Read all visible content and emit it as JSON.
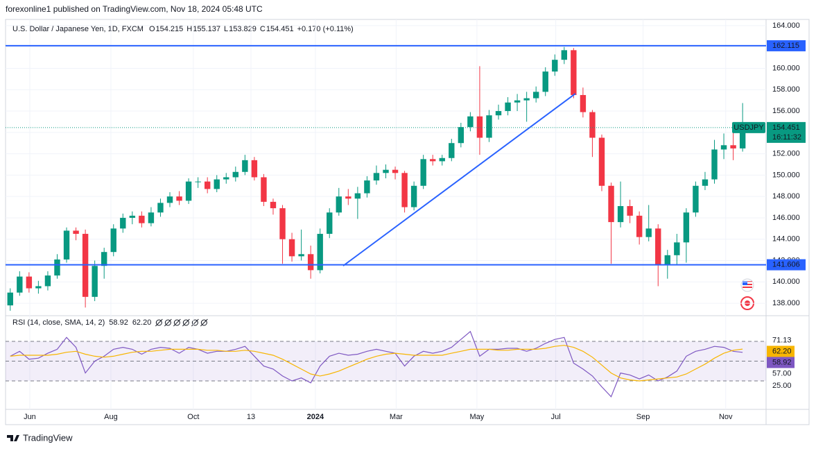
{
  "header": {
    "published": "forexonline1 published on TradingView.com, Nov 18, 2024 05:48 UTC",
    "symbol": "U.S. Dollar / Japanese Yen, 1D, FXCM",
    "ohlc": [
      {
        "label": "O",
        "value": "154.215"
      },
      {
        "label": "H",
        "value": "155.137"
      },
      {
        "label": "L",
        "value": "153.829"
      },
      {
        "label": "C",
        "value": "154.451"
      }
    ],
    "change": "+0.170 (+0.11%)"
  },
  "chart_data": [
    {
      "type": "candlestick",
      "symbol_tag": "USDJPY",
      "countdown": "16:11:32",
      "up_color": "#089981",
      "down_color": "#f23645",
      "candles": [
        [
          137.8,
          139.4,
          137.3,
          139.0
        ],
        [
          139.0,
          141.0,
          138.7,
          140.5
        ],
        [
          140.5,
          140.9,
          139.0,
          139.4
        ],
        [
          139.4,
          140.1,
          138.9,
          139.6
        ],
        [
          139.6,
          141.0,
          139.2,
          140.6
        ],
        [
          140.6,
          142.6,
          140.3,
          142.1
        ],
        [
          142.1,
          145.1,
          141.8,
          144.8
        ],
        [
          144.8,
          145.1,
          143.9,
          144.5
        ],
        [
          144.5,
          144.9,
          137.6,
          138.6
        ],
        [
          138.6,
          142.0,
          138.2,
          141.5
        ],
        [
          141.5,
          143.2,
          140.3,
          142.8
        ],
        [
          142.8,
          145.4,
          142.4,
          145.0
        ],
        [
          145.0,
          146.4,
          144.6,
          146.0
        ],
        [
          146.0,
          146.6,
          145.4,
          146.2
        ],
        [
          146.2,
          146.6,
          145.1,
          145.5
        ],
        [
          145.5,
          147.0,
          145.2,
          146.5
        ],
        [
          146.5,
          147.8,
          146.1,
          147.4
        ],
        [
          147.4,
          148.4,
          147.0,
          148.0
        ],
        [
          148.0,
          148.5,
          147.2,
          147.6
        ],
        [
          147.6,
          149.7,
          147.3,
          149.4
        ],
        [
          149.4,
          149.8,
          148.8,
          149.4
        ],
        [
          149.4,
          149.8,
          148.3,
          148.7
        ],
        [
          148.7,
          150.0,
          148.4,
          149.6
        ],
        [
          149.6,
          150.2,
          149.2,
          149.8
        ],
        [
          149.8,
          150.8,
          149.4,
          150.3
        ],
        [
          150.3,
          151.9,
          150.0,
          151.4
        ],
        [
          151.4,
          151.7,
          149.5,
          149.8
        ],
        [
          149.8,
          150.1,
          147.1,
          147.5
        ],
        [
          147.5,
          147.8,
          146.3,
          146.9
        ],
        [
          146.9,
          147.2,
          141.7,
          144.0
        ],
        [
          144.0,
          144.6,
          141.9,
          142.4
        ],
        [
          142.4,
          144.9,
          142.0,
          142.6
        ],
        [
          142.6,
          143.4,
          140.3,
          141.1
        ],
        [
          141.1,
          145.0,
          140.8,
          144.5
        ],
        [
          144.5,
          146.9,
          144.1,
          146.5
        ],
        [
          146.5,
          148.8,
          146.2,
          148.0
        ],
        [
          148.0,
          148.7,
          147.2,
          147.8
        ],
        [
          147.8,
          148.9,
          145.9,
          148.3
        ],
        [
          148.3,
          149.9,
          147.9,
          149.5
        ],
        [
          149.5,
          150.9,
          149.1,
          150.2
        ],
        [
          150.2,
          151.0,
          149.7,
          150.5
        ],
        [
          150.5,
          150.8,
          149.6,
          150.2
        ],
        [
          150.2,
          150.4,
          146.5,
          147.0
        ],
        [
          147.0,
          149.4,
          146.7,
          149.0
        ],
        [
          149.0,
          151.9,
          148.7,
          151.5
        ],
        [
          151.5,
          151.9,
          150.9,
          151.3
        ],
        [
          151.3,
          151.9,
          150.9,
          151.6
        ],
        [
          151.6,
          153.4,
          151.3,
          153.0
        ],
        [
          153.0,
          154.9,
          152.6,
          154.5
        ],
        [
          154.5,
          155.9,
          154.1,
          155.5
        ],
        [
          155.5,
          160.2,
          151.9,
          153.5
        ],
        [
          153.5,
          156.1,
          153.1,
          155.6
        ],
        [
          155.6,
          156.6,
          155.2,
          156.0
        ],
        [
          156.0,
          157.3,
          155.6,
          156.8
        ],
        [
          156.8,
          157.6,
          156.0,
          157.0
        ],
        [
          157.0,
          157.8,
          155.0,
          157.2
        ],
        [
          157.2,
          158.3,
          156.8,
          157.8
        ],
        [
          157.8,
          160.1,
          157.4,
          159.7
        ],
        [
          159.7,
          161.3,
          159.3,
          160.8
        ],
        [
          160.8,
          162.0,
          160.4,
          161.7
        ],
        [
          161.7,
          161.9,
          157.2,
          157.5
        ],
        [
          157.5,
          158.2,
          155.4,
          155.9
        ],
        [
          155.9,
          156.1,
          151.7,
          153.5
        ],
        [
          153.5,
          153.8,
          148.5,
          149.0
        ],
        [
          149.0,
          149.3,
          141.7,
          145.6
        ],
        [
          145.6,
          149.4,
          145.1,
          147.1
        ],
        [
          147.1,
          147.7,
          145.5,
          146.2
        ],
        [
          146.2,
          146.6,
          143.5,
          144.2
        ],
        [
          144.2,
          147.2,
          143.8,
          145.0
        ],
        [
          145.0,
          145.4,
          139.6,
          141.6
        ],
        [
          141.6,
          143.0,
          140.3,
          142.5
        ],
        [
          142.5,
          144.5,
          141.6,
          143.7
        ],
        [
          143.7,
          146.9,
          141.8,
          146.5
        ],
        [
          146.5,
          149.4,
          146.1,
          149.0
        ],
        [
          149.0,
          150.3,
          148.6,
          149.6
        ],
        [
          149.6,
          153.3,
          149.2,
          152.4
        ],
        [
          152.4,
          153.9,
          151.5,
          152.8
        ],
        [
          152.8,
          154.3,
          151.4,
          152.5
        ],
        [
          152.5,
          156.75,
          152.2,
          154.451
        ]
      ],
      "xlim": [
        -0.5,
        80.5
      ],
      "xticks": [
        {
          "value": 2.08,
          "label": "Jun"
        },
        {
          "value": 10.72,
          "label": "Aug"
        },
        {
          "value": 19.5,
          "label": "Oct"
        },
        {
          "value": 25.64,
          "label": "13"
        },
        {
          "value": 32.5,
          "label": "2024"
        },
        {
          "value": 41.1,
          "label": "Mar"
        },
        {
          "value": 49.7,
          "label": "May"
        },
        {
          "value": 58.1,
          "label": "Jul"
        },
        {
          "value": 67.4,
          "label": "Sep"
        },
        {
          "value": 76.2,
          "label": "Nov"
        }
      ],
      "ylim": [
        137.16,
        164.58
      ],
      "yticks": [
        {
          "value": 138,
          "label": "138.000"
        },
        {
          "value": 140,
          "label": "140.000"
        },
        {
          "value": 142,
          "label": "142.000"
        },
        {
          "value": 144,
          "label": "144.000"
        },
        {
          "value": 146,
          "label": "146.000"
        },
        {
          "value": 148,
          "label": "148.000"
        },
        {
          "value": 150,
          "label": "150.000"
        },
        {
          "value": 152,
          "label": "152.000"
        },
        {
          "value": 154,
          "label": "154.000"
        },
        {
          "value": 156,
          "label": "156.000"
        },
        {
          "value": 158,
          "label": "158.000"
        },
        {
          "value": 160,
          "label": "160.000"
        },
        {
          "value": 162,
          "label": "162.000"
        },
        {
          "value": 164,
          "label": "164.000"
        }
      ],
      "grid": true,
      "levels": [
        {
          "value": 162.115,
          "color": "#2962ff"
        },
        {
          "value": 141.606,
          "color": "#2962ff"
        }
      ],
      "trend_line": {
        "x": [
          35.46,
          60.19
        ],
        "y": [
          141.51,
          157.63
        ],
        "color": "#2962ff"
      }
    },
    {
      "type": "line",
      "title": "RSI (14, close, SMA, 14, 2)",
      "ylim": [
        1.2,
        93.9
      ],
      "yticks": [
        {
          "value": 25,
          "label": "25.00"
        },
        {
          "value": 57,
          "label": "57.00"
        },
        71.13
      ],
      "bands": [
        30,
        50,
        70
      ],
      "band_color": "#7e57c2",
      "series": [
        {
          "color": "#7e57c2",
          "values": [
            55,
            60,
            52,
            53,
            58,
            62,
            74,
            64,
            38,
            50,
            55,
            62,
            64,
            62,
            57,
            62,
            64,
            63,
            58,
            64,
            62,
            58,
            60,
            60,
            62,
            65,
            55,
            45,
            42,
            35,
            30,
            33,
            28,
            45,
            55,
            58,
            56,
            57,
            60,
            62,
            60,
            58,
            45,
            55,
            60,
            58,
            60,
            64,
            72,
            80,
            55,
            62,
            62,
            63,
            63,
            60,
            63,
            68,
            72,
            74,
            48,
            42,
            35,
            24,
            14,
            38,
            36,
            32,
            36,
            30,
            34,
            40,
            55,
            60,
            62,
            65,
            64,
            60,
            58.92
          ]
        },
        {
          "color": "#f7b500",
          "values": [
            55,
            56,
            56,
            56,
            56,
            57,
            59,
            60,
            57,
            55,
            54,
            55,
            57,
            59,
            60,
            60,
            61,
            62,
            62,
            62,
            62,
            61,
            61,
            60,
            60,
            61,
            60,
            58,
            56,
            52,
            47,
            42,
            37,
            35,
            37,
            40,
            44,
            48,
            52,
            55,
            57,
            58,
            57,
            56,
            56,
            56,
            56,
            58,
            60,
            62,
            62,
            62,
            61,
            61,
            62,
            62,
            62,
            63,
            65,
            66,
            64,
            60,
            54,
            46,
            38,
            33,
            31,
            30,
            31,
            32,
            33,
            34,
            37,
            42,
            47,
            53,
            58,
            61,
            62.2
          ],
          "value_labels": [
            null,
            null,
            null,
            null,
            null,
            null,
            null,
            null,
            null,
            null,
            null,
            null,
            null,
            null,
            null,
            null,
            null,
            null,
            null,
            null,
            null,
            null,
            null,
            null,
            null,
            null,
            null,
            null,
            null,
            null,
            null,
            null,
            null,
            null,
            null,
            null,
            null,
            null,
            null,
            null,
            null,
            null,
            null,
            null,
            null,
            null,
            null,
            null,
            null,
            null,
            null,
            null,
            null,
            null,
            null,
            null,
            null,
            null,
            null,
            null,
            null,
            null,
            null,
            null,
            null,
            null,
            null,
            null,
            null,
            null,
            null,
            null,
            null,
            null,
            null,
            null,
            null,
            null,
            "62.20"
          ]
        }
      ]
    }
  ],
  "footer": {
    "brand": "TradingView"
  }
}
